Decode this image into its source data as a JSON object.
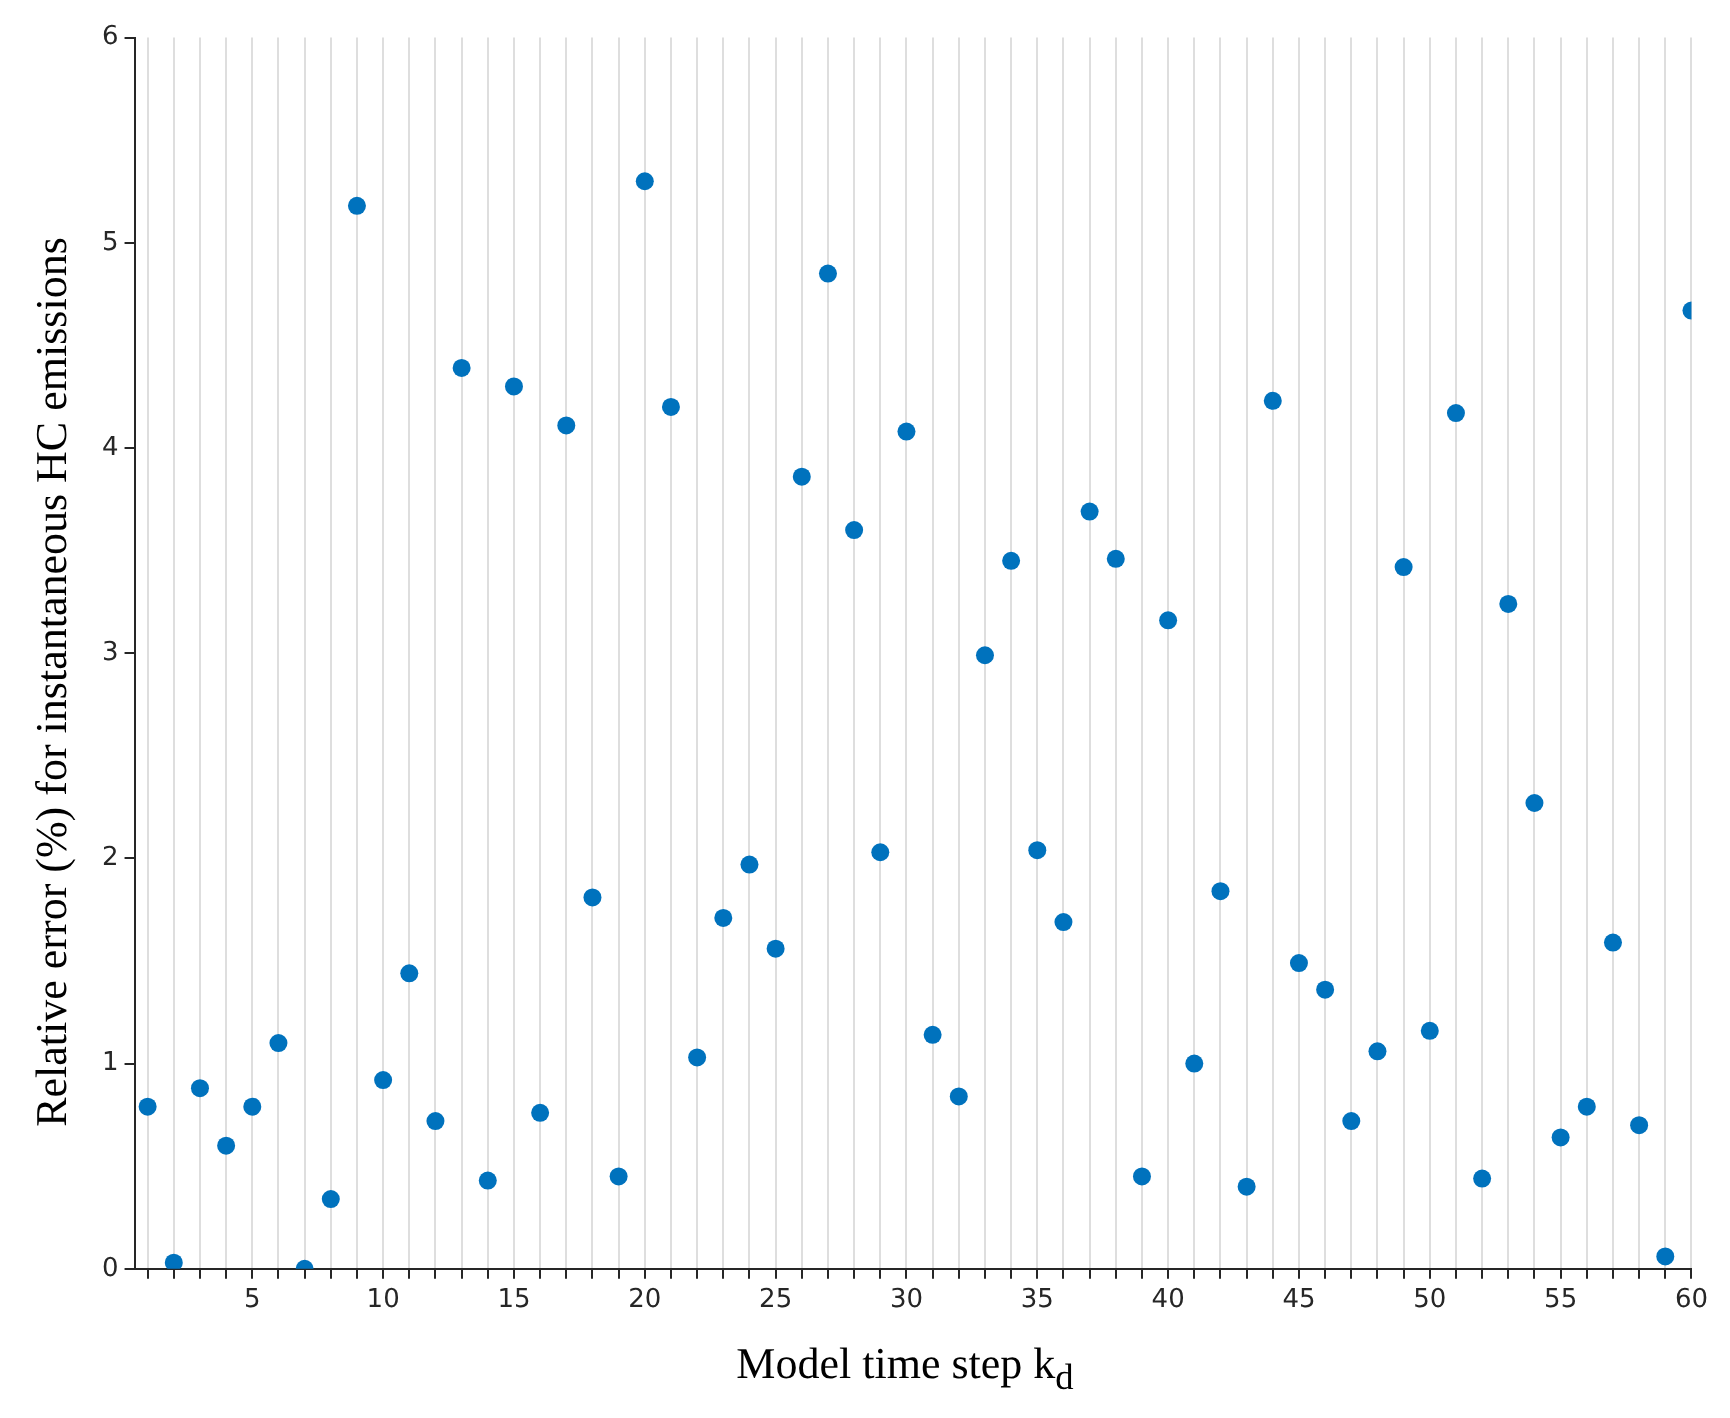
{
  "chart_data": {
    "type": "scatter",
    "xlabel": "Model time step k$_{d}$",
    "ylabel": "Relative error (%) for instantaneous HC emissions",
    "x": [
      1,
      2,
      3,
      4,
      5,
      6,
      7,
      8,
      9,
      10,
      11,
      12,
      13,
      14,
      15,
      16,
      17,
      18,
      19,
      20,
      21,
      22,
      23,
      24,
      25,
      26,
      27,
      28,
      29,
      30,
      31,
      32,
      33,
      34,
      35,
      36,
      37,
      38,
      39,
      40,
      41,
      42,
      43,
      44,
      45,
      46,
      47,
      48,
      49,
      50,
      51,
      52,
      53,
      54,
      55,
      56,
      57,
      58,
      59,
      60
    ],
    "series": [
      {
        "color": "#0072bd",
        "values": [
          0.79,
          0.03,
          0.88,
          0.6,
          0.79,
          1.1,
          0.0,
          0.34,
          5.18,
          0.92,
          1.44,
          0.72,
          4.39,
          0.43,
          4.3,
          0.76,
          4.11,
          1.81,
          0.45,
          5.3,
          4.2,
          1.03,
          1.71,
          1.97,
          1.56,
          3.86,
          4.85,
          3.6,
          2.03,
          4.08,
          1.14,
          0.84,
          2.99,
          3.45,
          2.04,
          1.69,
          3.69,
          3.46,
          0.45,
          3.16,
          1.0,
          1.84,
          0.4,
          4.23,
          1.49,
          1.36,
          0.72,
          1.06,
          3.42,
          1.16,
          4.17,
          0.44,
          3.24,
          2.27,
          0.64,
          0.79,
          1.59,
          0.7,
          0.06,
          4.67
        ]
      }
    ],
    "xlim": [
      0.5,
      60
    ],
    "ylim": [
      0,
      6
    ],
    "yticks": [
      0,
      1,
      2,
      3,
      4,
      5,
      6
    ],
    "xticks": [
      {
        "value": 1,
        "label": null
      },
      {
        "value": 2,
        "label": null
      },
      {
        "value": 3,
        "label": null
      },
      {
        "value": 4,
        "label": null
      },
      5,
      {
        "value": 6,
        "label": null
      },
      {
        "value": 7,
        "label": null
      },
      {
        "value": 8,
        "label": null
      },
      {
        "value": 9,
        "label": null
      },
      10,
      {
        "value": 11,
        "label": null
      },
      {
        "value": 12,
        "label": null
      },
      {
        "value": 13,
        "label": null
      },
      {
        "value": 14,
        "label": null
      },
      15,
      {
        "value": 16,
        "label": null
      },
      {
        "value": 17,
        "label": null
      },
      {
        "value": 18,
        "label": null
      },
      {
        "value": 19,
        "label": null
      },
      20,
      {
        "value": 21,
        "label": null
      },
      {
        "value": 22,
        "label": null
      },
      {
        "value": 23,
        "label": null
      },
      {
        "value": 24,
        "label": null
      },
      25,
      {
        "value": 26,
        "label": null
      },
      {
        "value": 27,
        "label": null
      },
      {
        "value": 28,
        "label": null
      },
      {
        "value": 29,
        "label": null
      },
      30,
      {
        "value": 31,
        "label": null
      },
      {
        "value": 32,
        "label": null
      },
      {
        "value": 33,
        "label": null
      },
      {
        "value": 34,
        "label": null
      },
      35,
      {
        "value": 36,
        "label": null
      },
      {
        "value": 37,
        "label": null
      },
      {
        "value": 38,
        "label": null
      },
      {
        "value": 39,
        "label": null
      },
      40,
      {
        "value": 41,
        "label": null
      },
      {
        "value": 42,
        "label": null
      },
      {
        "value": 43,
        "label": null
      },
      {
        "value": 44,
        "label": null
      },
      45,
      {
        "value": 46,
        "label": null
      },
      {
        "value": 47,
        "label": null
      },
      {
        "value": 48,
        "label": null
      },
      {
        "value": 49,
        "label": null
      },
      50,
      {
        "value": 51,
        "label": null
      },
      {
        "value": 52,
        "label": null
      },
      {
        "value": 53,
        "label": null
      },
      {
        "value": 54,
        "label": null
      },
      55,
      {
        "value": 56,
        "label": null
      },
      {
        "value": 57,
        "label": null
      },
      {
        "value": 58,
        "label": null
      },
      {
        "value": 59,
        "label": null
      },
      60
    ],
    "grid": "x",
    "marker": "circle",
    "legend": false
  }
}
